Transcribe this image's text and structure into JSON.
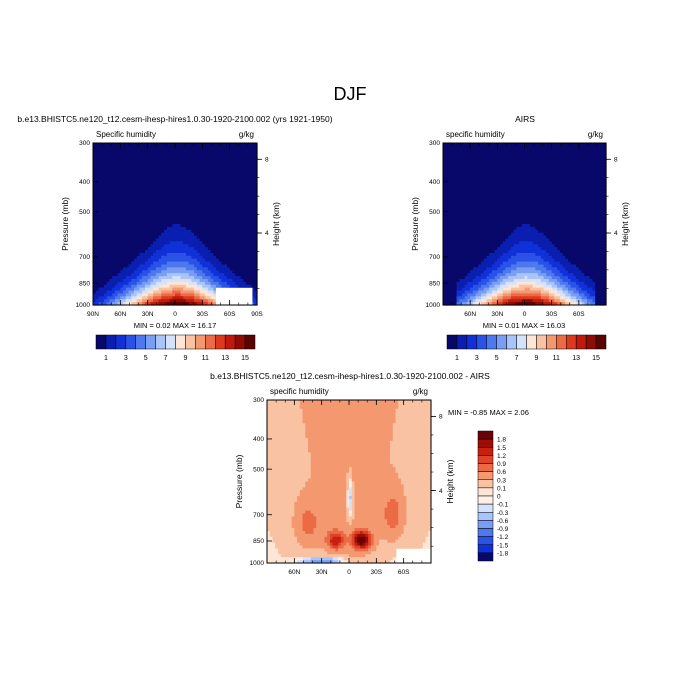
{
  "figure": {
    "title": "DJF"
  },
  "colors": {
    "abs_levels": [
      "#08086b",
      "#0a1fb0",
      "#1030d8",
      "#2a52e6",
      "#4d78ee",
      "#7a9ef4",
      "#a9c4f8",
      "#d4e2fb",
      "#fde6d6",
      "#f9c2a2",
      "#f49870",
      "#ec6a45",
      "#dc3a1f",
      "#c01a0d",
      "#8f0c05",
      "#5a0303"
    ],
    "diff_levels": [
      "#08086b",
      "#1030d8",
      "#2a52e6",
      "#4d78ee",
      "#7a9ef4",
      "#a9c4f8",
      "#d4e2fb",
      "#fdf0e6",
      "#fde6d6",
      "#f9c2a2",
      "#f49870",
      "#ec6a45",
      "#e04428",
      "#c81f10",
      "#9c0d06",
      "#6a0404"
    ]
  },
  "chart_data": [
    {
      "id": "model",
      "type": "heatmap",
      "title": "b.e13.BHISTC5.ne120_t12.cesm-ihesp-hires1.0.30-1920-2100.002 (yrs 1921-1950)",
      "left_label": "Specific humidity",
      "right_label": "g/kg",
      "xlabel": "",
      "ylabel": "Pressure (mb)",
      "ylabel_right": "Height (km)",
      "xlim": [
        90,
        -90
      ],
      "ylim": [
        1000,
        300
      ],
      "x_ticks": [
        90,
        60,
        30,
        0,
        -30,
        -60,
        -90
      ],
      "x_tick_labels": [
        "90N",
        "60N",
        "30N",
        "0",
        "30S",
        "60S",
        "90S"
      ],
      "y_ticks": [
        300,
        400,
        500,
        700,
        850,
        1000
      ],
      "y_tick_labels": [
        "300",
        "400",
        "500",
        "700",
        "850",
        "1000"
      ],
      "height_ticks": [
        {
          "km": 8,
          "label": "8"
        },
        {
          "km": 4,
          "label": "4"
        }
      ],
      "stats": "MIN =   0.02  MAX =  16.17",
      "peak": 16.17,
      "missing_box": [
        -45,
        -85,
        880,
        1000
      ]
    },
    {
      "id": "obs",
      "type": "heatmap",
      "title": "AIRS",
      "left_label": "specific humidity",
      "right_label": "g/kg",
      "xlabel": "",
      "ylabel": "Pressure (mb)",
      "ylabel_right": "Height (km)",
      "xlim": [
        90,
        -90
      ],
      "ylim": [
        1000,
        300
      ],
      "x_ticks": [
        60,
        30,
        0,
        -30,
        -60
      ],
      "x_tick_labels": [
        "60N",
        "30N",
        "0",
        "30S",
        "60S"
      ],
      "y_ticks": [
        300,
        400,
        500,
        700,
        850,
        1000
      ],
      "y_tick_labels": [
        "300",
        "400",
        "500",
        "700",
        "850",
        "1000"
      ],
      "height_ticks": [
        {
          "km": 8,
          "label": "8"
        },
        {
          "km": 4,
          "label": "4"
        }
      ],
      "stats": "MIN =   0.01  MAX =  16.03",
      "peak": 16.03
    },
    {
      "id": "diff",
      "type": "heatmap",
      "title": "b.e13.BHISTC5.ne120_t12.cesm-ihesp-hires1.0.30-1920-2100.002 - AIRS",
      "left_label": "specific humidity",
      "right_label": "g/kg",
      "xlabel": "",
      "ylabel": "Pressure (mb)",
      "ylabel_right": "Height (km)",
      "xlim": [
        90,
        -90
      ],
      "ylim": [
        1000,
        300
      ],
      "x_ticks": [
        60,
        30,
        0,
        -30,
        -60
      ],
      "x_tick_labels": [
        "60N",
        "30N",
        "0",
        "30S",
        "60S"
      ],
      "y_ticks": [
        300,
        400,
        500,
        700,
        850,
        1000
      ],
      "y_tick_labels": [
        "300",
        "400",
        "500",
        "700",
        "850",
        "1000"
      ],
      "height_ticks": [
        {
          "km": 8,
          "label": "8"
        },
        {
          "km": 4,
          "label": "4"
        }
      ],
      "stats": "MIN =  -0.85  MAX =   2.06",
      "missing_box": [
        -52,
        -90,
        900,
        1000
      ]
    }
  ],
  "colorbars": {
    "abs": {
      "labels": [
        "1",
        "3",
        "5",
        "7",
        "9",
        "11",
        "13",
        "15"
      ]
    },
    "diff": {
      "labels": [
        "1.8",
        "1.5",
        "1.2",
        "0.9",
        "0.6",
        "0.3",
        "0.1",
        "0",
        "-0.1",
        "-0.3",
        "-0.6",
        "-0.9",
        "-1.2",
        "-1.5",
        "-1.8"
      ]
    }
  }
}
